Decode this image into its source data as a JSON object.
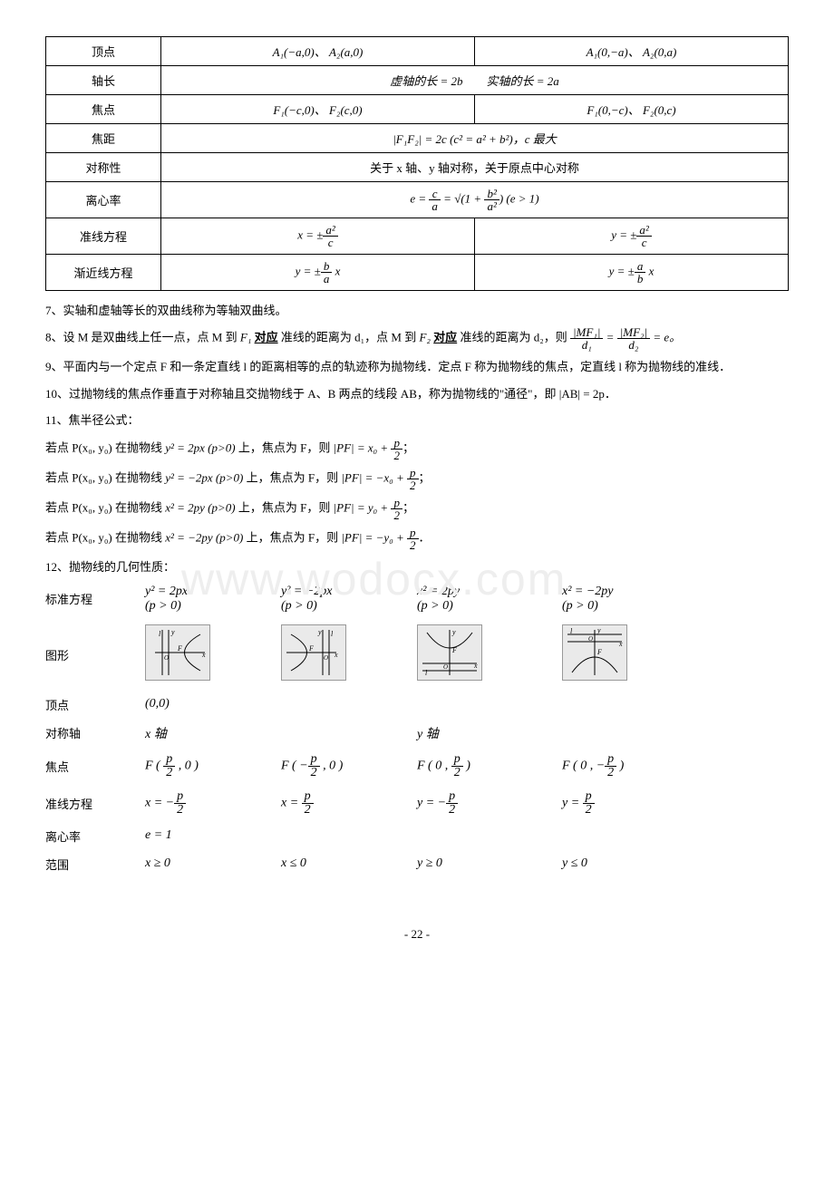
{
  "watermark": "www.wodocx.com",
  "table": {
    "rows": [
      {
        "label": "顶点",
        "col1": "A₁(−a,0)、 A₂(a,0)",
        "col2": "A₁(0,−a)、 A₂(0,a)"
      },
      {
        "label": "轴长",
        "span": "虚轴的长 = 2b　　实轴的长 = 2a"
      },
      {
        "label": "焦点",
        "col1": "F₁(−c,0)、 F₂(c,0)",
        "col2": "F₁(0,−c)、 F₂(0,c)"
      },
      {
        "label": "焦距",
        "span": "|F₁F₂| = 2c (c² = a² + b²)，c 最大"
      },
      {
        "label": "对称性",
        "span": "关于 x 轴、y 轴对称，关于原点中心对称"
      },
      {
        "label": "离心率",
        "span_html": true
      },
      {
        "label": "准线方程",
        "col1_html": true,
        "col2_html": true
      },
      {
        "label": "渐近线方程",
        "col1_html": true,
        "col2_html": true
      }
    ]
  },
  "items": {
    "i7": "7、实轴和虚轴等长的双曲线称为等轴双曲线。",
    "i8_a": "8、设 M 是双曲线上任一点，点 M 到 ",
    "i8_b": " 准线的距离为 d₁，点 M 到 ",
    "i8_c": " 准线的距离为 d₂，则 ",
    "i8_f1": "F₁",
    "i8_f2": "F₂",
    "i8_underline": "对应",
    "i8_eq": " = e。",
    "i9": "9、平面内与一个定点 F 和一条定直线 l 的距离相等的点的轨迹称为抛物线．定点 F 称为抛物线的焦点，定直线 l 称为抛物线的准线．",
    "i10": "10、过抛物线的焦点作垂直于对称轴且交抛物线于 A、B 两点的线段 AB，称为抛物线的\"通径\"，即 |AB| = 2p．",
    "i11": "11、焦半径公式：",
    "focal": [
      {
        "eq": "y² = 2px (p>0)",
        "result": "|PF| = x₀ + ",
        "frac_num": "p",
        "frac_den": "2",
        "suffix": "；"
      },
      {
        "eq": "y² = −2px (p>0)",
        "result": "|PF| = −x₀ + ",
        "frac_num": "p",
        "frac_den": "2",
        "suffix": "；"
      },
      {
        "eq": "x² = 2py (p>0)",
        "result": "|PF| = y₀ + ",
        "frac_num": "p",
        "frac_den": "2",
        "suffix": "；"
      },
      {
        "eq": "x² = −2py (p>0)",
        "result": "|PF| = −y₀ + ",
        "frac_num": "p",
        "frac_den": "2",
        "suffix": "．"
      }
    ],
    "focal_prefix": "若点 P(x₀, y₀) 在抛物线 ",
    "focal_mid": " 上，焦点为 F，则 ",
    "i12": "12、抛物线的几何性质："
  },
  "parabola": {
    "headers": {
      "std": "标准方程",
      "graph": "图形",
      "vertex": "顶点",
      "axis": "对称轴",
      "focus": "焦点",
      "directrix": "准线方程",
      "ecc": "离心率",
      "range": "范围"
    },
    "cols": [
      {
        "std1": "y² = 2px",
        "std2": "(p > 0)",
        "vertex": "(0,0)",
        "axis": "x 轴",
        "focus_l": "p",
        "focus_r": "2",
        "focus_fmt": "F( p/2, 0 )",
        "directrix": "x = −",
        "dir_num": "p",
        "dir_den": "2",
        "ecc": "e = 1",
        "range": "x ≥ 0",
        "svg": "right"
      },
      {
        "std1": "y² = −2px",
        "std2": "(p > 0)",
        "vertex": "",
        "axis": "",
        "focus_fmt": "F( −p/2, 0 )",
        "directrix": "x = ",
        "dir_num": "p",
        "dir_den": "2",
        "ecc": "",
        "range": "x ≤ 0",
        "svg": "left"
      },
      {
        "std1": "x² = 2py",
        "std2": "(p > 0)",
        "vertex": "",
        "axis": "y 轴",
        "focus_fmt": "F( 0, p/2 )",
        "directrix": "y = −",
        "dir_num": "p",
        "dir_den": "2",
        "ecc": "",
        "range": "y ≥ 0",
        "svg": "up"
      },
      {
        "std1": "x² = −2py",
        "std2": "(p > 0)",
        "vertex": "",
        "axis": "",
        "focus_fmt": "F( 0, −p/2 )",
        "directrix": "y = ",
        "dir_num": "p",
        "dir_den": "2",
        "ecc": "",
        "range": "y ≤ 0",
        "svg": "down"
      }
    ],
    "focus_display": [
      "F ( <span class='frac'><span class='num'>p</span><span class='den'>2</span></span> , 0 )",
      "F ( −<span class='frac'><span class='num'>p</span><span class='den'>2</span></span> , 0 )",
      "F ( 0 , <span class='frac'><span class='num'>p</span><span class='den'>2</span></span> )",
      "F ( 0 , −<span class='frac'><span class='num'>p</span><span class='den'>2</span></span> )"
    ]
  },
  "pagenum": "- 22 -"
}
